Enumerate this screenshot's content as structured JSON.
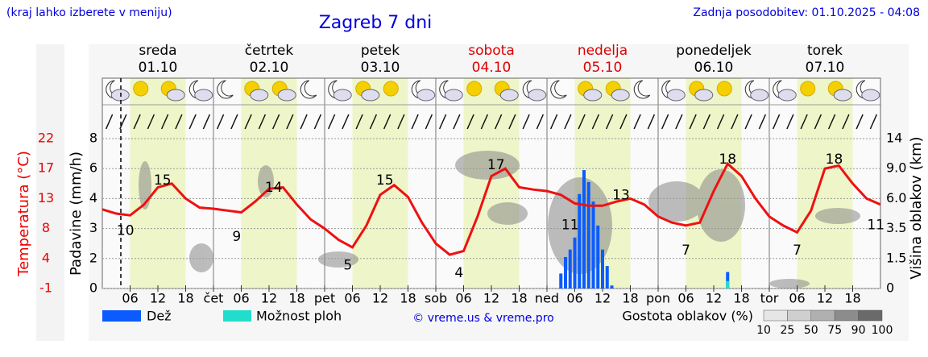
{
  "header": {
    "hint": "(kraj lahko izberete v meniju)",
    "title": "Zagreb 7 dni",
    "updated": "Zadnja posodobitev: 01.10.2025 - 04:08"
  },
  "chart_data": {
    "type": "meteogram",
    "days": {
      "names": [
        "sreda",
        "četrtek",
        "petek",
        "sobota",
        "nedelja",
        "ponedeljek",
        "torek"
      ],
      "dates": [
        "01.10",
        "02.10",
        "03.10",
        "04.10",
        "05.10",
        "06.10",
        "07.10"
      ],
      "colors": [
        "#000000",
        "#000000",
        "#000000",
        "#dd0000",
        "#dd0000",
        "#000000",
        "#000000"
      ]
    },
    "xlim": [
      0,
      168
    ],
    "xticks": [
      {
        "value": 6,
        "label": "06"
      },
      {
        "value": 12,
        "label": "12"
      },
      {
        "value": 18,
        "label": "18"
      },
      {
        "value": 24,
        "label": "čet"
      },
      {
        "value": 30,
        "label": "06"
      },
      {
        "value": 36,
        "label": "12"
      },
      {
        "value": 42,
        "label": "18"
      },
      {
        "value": 48,
        "label": "pet"
      },
      {
        "value": 54,
        "label": "06"
      },
      {
        "value": 60,
        "label": "12"
      },
      {
        "value": 66,
        "label": "18"
      },
      {
        "value": 72,
        "label": "sob"
      },
      {
        "value": 78,
        "label": "06"
      },
      {
        "value": 84,
        "label": "12"
      },
      {
        "value": 90,
        "label": "18"
      },
      {
        "value": 96,
        "label": "ned"
      },
      {
        "value": 102,
        "label": "06"
      },
      {
        "value": 108,
        "label": "12"
      },
      {
        "value": 114,
        "label": "18"
      },
      {
        "value": 120,
        "label": "pon"
      },
      {
        "value": 126,
        "label": "06"
      },
      {
        "value": 132,
        "label": "12"
      },
      {
        "value": 138,
        "label": "18"
      },
      {
        "value": 144,
        "label": "tor"
      },
      {
        "value": 150,
        "label": "06"
      },
      {
        "value": 156,
        "label": "12"
      },
      {
        "value": 162,
        "label": "18"
      }
    ],
    "now": 4,
    "temp_axis": {
      "label": "Temperatura (°C)",
      "color": "#ee0000",
      "yticks": [
        -1,
        4,
        8,
        13,
        17,
        22
      ]
    },
    "precip_axis": {
      "label": "Padavine (mm/h)",
      "yticks": [
        0,
        2,
        3,
        4,
        6,
        8
      ]
    },
    "cloud_axis": {
      "label": "Višina oblakov (km)",
      "yticks": [
        0,
        1.5,
        3.5,
        {
          "value": 6,
          "label": "6.0"
        },
        {
          "value": 9,
          "label": "9.0"
        },
        14
      ]
    },
    "temperature": {
      "color": "#ee1111",
      "x": [
        0,
        3,
        6,
        9,
        12,
        15,
        18,
        21,
        24,
        27,
        30,
        33,
        36,
        39,
        42,
        45,
        48,
        51,
        54,
        57,
        60,
        63,
        66,
        69,
        72,
        75,
        78,
        81,
        84,
        87,
        90,
        93,
        96,
        99,
        102,
        105,
        108,
        111,
        114,
        117,
        120,
        123,
        126,
        129,
        132,
        135,
        138,
        141,
        144,
        147,
        150,
        153,
        156,
        159,
        162,
        165,
        168
      ],
      "values": [
        11.2,
        10.5,
        10.2,
        12,
        14.5,
        15,
        13,
        11.5,
        11.3,
        11,
        10.7,
        12.5,
        14.3,
        14.5,
        12,
        9.5,
        8,
        6.5,
        5.5,
        8.5,
        13.5,
        14.8,
        13.2,
        9,
        6,
        4.5,
        5,
        10,
        16,
        17,
        14.5,
        14.2,
        14,
        13.5,
        12.2,
        11.8,
        11.8,
        12.5,
        13,
        12,
        10,
        9,
        8.5,
        9,
        14,
        17.8,
        16,
        13,
        10,
        8.5,
        7.5,
        11,
        17,
        17.5,
        15,
        13,
        12
      ]
    },
    "temp_labels": {
      "x": [
        5,
        13,
        29,
        37,
        53,
        61,
        77,
        85,
        101,
        112,
        126,
        135,
        150,
        158,
        167
      ],
      "values": [
        10,
        15,
        9,
        14,
        5,
        15,
        4,
        17,
        11,
        13,
        7,
        18,
        7,
        18,
        11
      ]
    },
    "series": [
      {
        "name": "Dež",
        "color": "#0a5cff",
        "x": [
          99,
          100,
          101,
          102,
          103,
          104,
          105,
          106,
          107,
          108,
          109,
          110,
          135
        ],
        "values": [
          1.0,
          2.05,
          2.3,
          2.7,
          4.3,
          5.9,
          5.1,
          3.9,
          3.1,
          2.3,
          1.5,
          0.2,
          1.1
        ]
      },
      {
        "name": "Možnost ploh",
        "color": "#22ddcc",
        "x": [
          135
        ],
        "values": [
          0.5
        ]
      }
    ],
    "credit": "© vreme.us & vreme.pro",
    "cloud_legend": {
      "label": "Gostota oblakov (%)",
      "ticks": [
        10,
        25,
        50,
        75,
        90,
        100
      ]
    }
  }
}
